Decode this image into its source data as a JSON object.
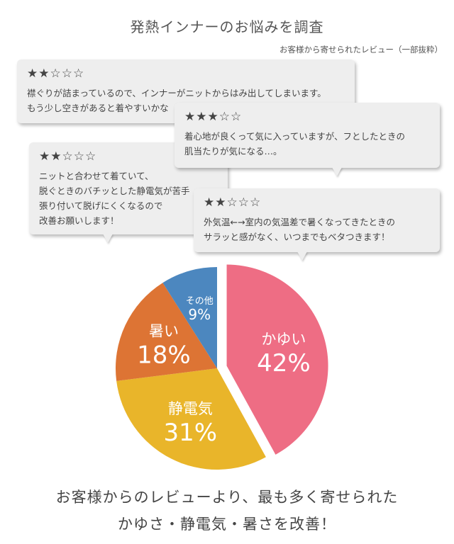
{
  "header": {
    "title": "発熱インナーのお悩みを調査",
    "subtitle": "お客様から寄せられたレビュー（一部抜粋）"
  },
  "reviews": [
    {
      "stars": "★★☆☆☆",
      "text": "襟ぐりが詰まっているので、インナーがニットからはみ出してしまいます。\nもう少し空きがあると着やすいかな"
    },
    {
      "stars": "★★★☆☆",
      "text": "着心地が良くって気に入っていますが、フとしたときの\n肌当たりが気になる…。"
    },
    {
      "stars": "★★☆☆☆",
      "text": "ニットと合わせて着ていて、\n脱ぐときのバチッとした静電気が苦手\n張り付いて脱げにくくなるので\n改善お願いします！"
    },
    {
      "stars": "★★☆☆☆",
      "text": "外気温←→室内の気温差で暑くなってきたときの\nサラッと感がなく、いつまでもベタつきます！"
    }
  ],
  "chart_data": {
    "type": "pie",
    "title": "",
    "slices": [
      {
        "label": "かゆい",
        "value": 42,
        "display": "42%",
        "color": "#ee6d84",
        "exploded": true
      },
      {
        "label": "静電気",
        "value": 31,
        "display": "31%",
        "color": "#e9b52a",
        "exploded": false
      },
      {
        "label": "暑い",
        "value": 18,
        "display": "18%",
        "color": "#dd7434",
        "exploded": false
      },
      {
        "label": "その他",
        "value": 9,
        "display": "9%",
        "color": "#4c87bf",
        "exploded": false
      }
    ],
    "legend": "none",
    "start": "top-center, clockwise"
  },
  "footer": {
    "line1": "お客様からのレビューより、最も多く寄せられた",
    "line2": "かゆさ・静電気・暑さを改善！"
  }
}
